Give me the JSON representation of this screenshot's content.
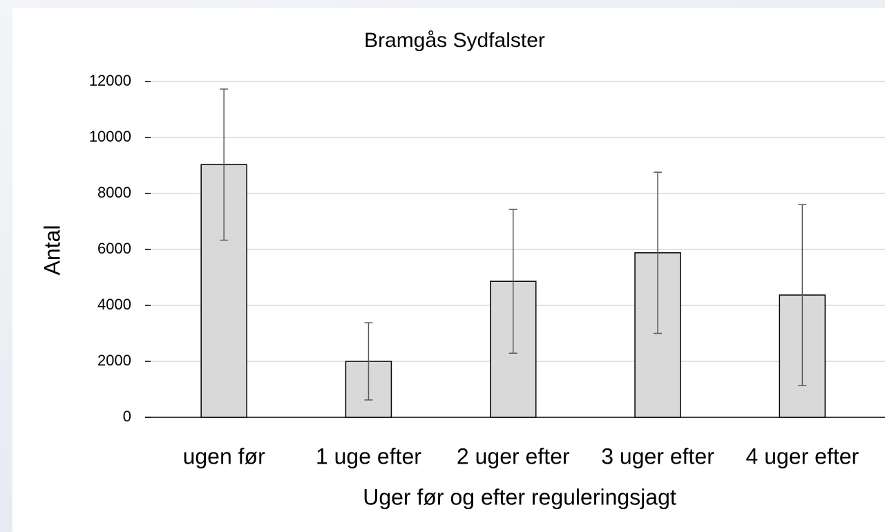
{
  "chart_data": {
    "type": "bar",
    "title": "Bramgås Sydfalster",
    "x_label": "Uger før og efter reguleringsjagt",
    "y_label": "Antal",
    "categories": [
      "ugen før",
      "1 uge efter",
      "2 uger efter",
      "3 uger efter",
      "4 uger efter"
    ],
    "values": [
      9030,
      2000,
      4860,
      5880,
      4370
    ],
    "errors": [
      2700,
      1380,
      2570,
      2880,
      3230
    ],
    "color": "#d9d9d9",
    "ylim": [
      0,
      12000
    ],
    "yticks": [
      0,
      2000,
      4000,
      6000,
      8000,
      10000,
      12000
    ],
    "grid": true
  }
}
